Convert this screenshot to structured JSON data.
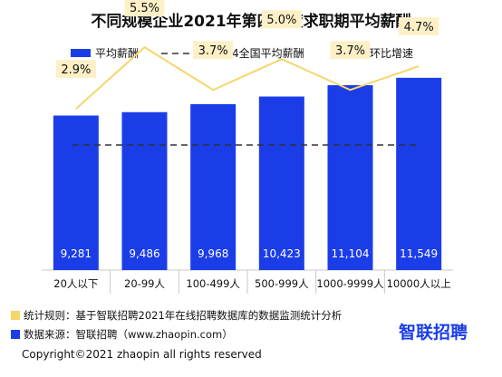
{
  "chart_data": {
    "type": "bar",
    "title": "不同规模企业2021年第四季度求职期平均薪酬",
    "categories": [
      "20人以下",
      "20-99人",
      "100-499人",
      "500-999人",
      "1000-9999人",
      "10000人以上"
    ],
    "series": [
      {
        "name": "平均薪酬",
        "type": "bar",
        "values": [
          9281,
          9486,
          9968,
          10423,
          11104,
          11549
        ],
        "labels": [
          "9,281",
          "9,486",
          "9,968",
          "10,423",
          "11,104",
          "11,549"
        ]
      },
      {
        "name": "环比增速",
        "type": "line",
        "values": [
          2.9,
          5.5,
          3.7,
          5.0,
          3.7,
          4.7
        ],
        "labels": [
          "2.9%",
          "5.5%",
          "3.7%",
          "5.0%",
          "3.7%",
          "4.7%"
        ]
      }
    ],
    "reference_line": {
      "name": "2021Q4全国平均薪酬",
      "style": "dashed"
    },
    "legend_position": "top",
    "ylim": [
      0,
      13500
    ],
    "line_ylim": [
      0,
      6.5
    ],
    "grid": false
  },
  "notes": {
    "rule": "统计规则：基于智联招聘2021年在线招聘数据库的数据监测统计分析",
    "source": "数据来源：智联招聘（www.zhaopin.com）"
  },
  "copyright": "Copyright©2021 zhaopin all rights reserved",
  "logo": "智联招聘",
  "colors": {
    "bar": "#1b3de8",
    "line": "#f5d66b",
    "label_box": "#fdf0c7",
    "reference": "#333333",
    "note_yellow": "#f5d66b"
  }
}
